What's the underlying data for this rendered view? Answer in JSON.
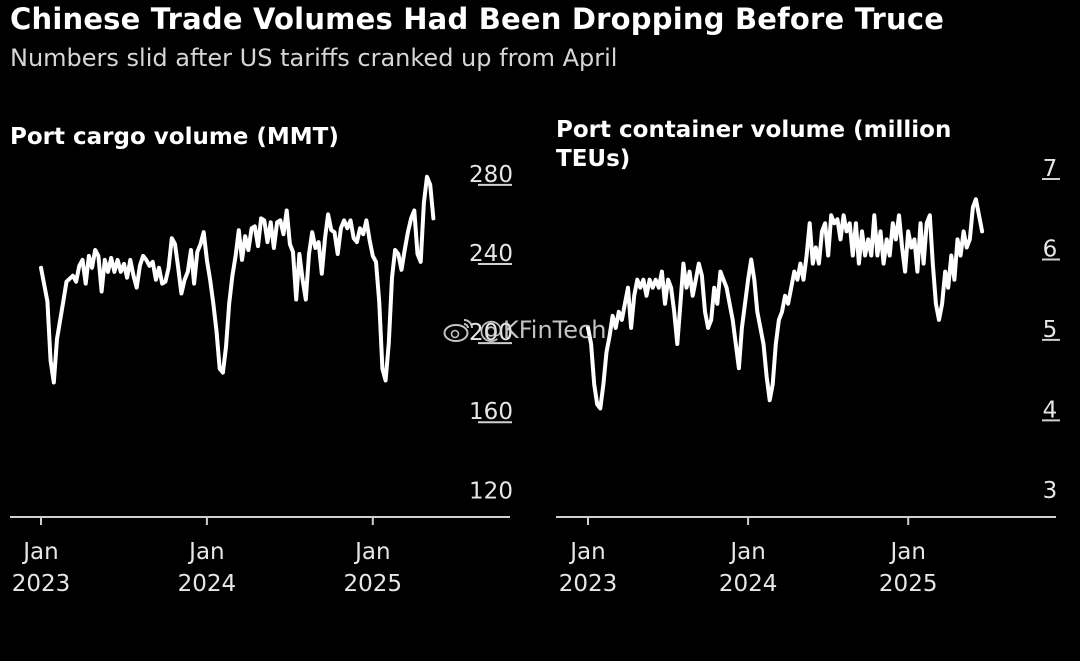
{
  "header": {
    "title": "Chinese Trade Volumes Had Been Dropping Before Truce",
    "subtitle": "Numbers slid after US tariffs cranked up from April"
  },
  "watermark": {
    "text": "@KFinTech",
    "icon": "weibo-icon"
  },
  "colors": {
    "background": "#000000",
    "line": "#ffffff",
    "axis": "#cccccc",
    "text": "#ffffff"
  },
  "chart_data": [
    {
      "type": "line",
      "title": "Port cargo volume (MMT)",
      "xlabel": "",
      "ylabel": "",
      "ylim": [
        106,
        285
      ],
      "yticks": [
        120,
        160,
        200,
        240,
        280
      ],
      "xlim": [
        0,
        147
      ],
      "xticks": [
        {
          "x": 0,
          "label": [
            "Jan",
            "2023"
          ]
        },
        {
          "x": 52,
          "label": [
            "Jan",
            "2024"
          ]
        },
        {
          "x": 104,
          "label": [
            "Jan",
            "2025"
          ]
        }
      ],
      "series": [
        {
          "name": "Port cargo volume",
          "x_unit": "weeks since Jan 2023",
          "values": [
            [
              0,
              232
            ],
            [
              2,
              215
            ],
            [
              3,
              185
            ],
            [
              4,
              174
            ],
            [
              5,
              196
            ],
            [
              7,
              215
            ],
            [
              8,
              225
            ],
            [
              10,
              228
            ],
            [
              11,
              225
            ],
            [
              12,
              233
            ],
            [
              13,
              236
            ],
            [
              14,
              224
            ],
            [
              15,
              238
            ],
            [
              16,
              232
            ],
            [
              17,
              241
            ],
            [
              18,
              238
            ],
            [
              19,
              220
            ],
            [
              20,
              236
            ],
            [
              21,
              230
            ],
            [
              22,
              237
            ],
            [
              23,
              230
            ],
            [
              24,
              236
            ],
            [
              25,
              230
            ],
            [
              26,
              234
            ],
            [
              27,
              227
            ],
            [
              28,
              236
            ],
            [
              29,
              228
            ],
            [
              30,
              222
            ],
            [
              31,
              233
            ],
            [
              32,
              238
            ],
            [
              33,
              236
            ],
            [
              34,
              233
            ],
            [
              35,
              235
            ],
            [
              36,
              226
            ],
            [
              37,
              232
            ],
            [
              38,
              224
            ],
            [
              39,
              225
            ],
            [
              40,
              232
            ],
            [
              41,
              247
            ],
            [
              42,
              244
            ],
            [
              43,
              232
            ],
            [
              44,
              219
            ],
            [
              45,
              226
            ],
            [
              46,
              230
            ],
            [
              47,
              241
            ],
            [
              48,
              224
            ],
            [
              49,
              240
            ],
            [
              50,
              244
            ],
            [
              51,
              250
            ],
            [
              52,
              236
            ],
            [
              53,
              226
            ],
            [
              54,
              214
            ],
            [
              55,
              200
            ],
            [
              56,
              181
            ],
            [
              57,
              179
            ],
            [
              58,
              192
            ],
            [
              59,
              214
            ],
            [
              60,
              228
            ],
            [
              61,
              238
            ],
            [
              62,
              251
            ],
            [
              63,
              236
            ],
            [
              64,
              248
            ],
            [
              65,
              241
            ],
            [
              66,
              252
            ],
            [
              67,
              253
            ],
            [
              68,
              243
            ],
            [
              69,
              257
            ],
            [
              70,
              256
            ],
            [
              71,
              245
            ],
            [
              72,
              255
            ],
            [
              73,
              242
            ],
            [
              74,
              255
            ],
            [
              75,
              256
            ],
            [
              76,
              249
            ],
            [
              77,
              261
            ],
            [
              78,
              244
            ],
            [
              79,
              240
            ],
            [
              80,
              216
            ],
            [
              81,
              239
            ],
            [
              82,
              226
            ],
            [
              83,
              216
            ],
            [
              84,
              239
            ],
            [
              85,
              250
            ],
            [
              86,
              242
            ],
            [
              87,
              245
            ],
            [
              88,
              229
            ],
            [
              89,
              247
            ],
            [
              90,
              259
            ],
            [
              91,
              251
            ],
            [
              92,
              250
            ],
            [
              93,
              239
            ],
            [
              94,
              252
            ],
            [
              95,
              256
            ],
            [
              96,
              252
            ],
            [
              97,
              256
            ],
            [
              98,
              247
            ],
            [
              99,
              245
            ],
            [
              100,
              252
            ],
            [
              101,
              249
            ],
            [
              102,
              256
            ],
            [
              103,
              246
            ],
            [
              104,
              238
            ],
            [
              105,
              235
            ],
            [
              106,
              215
            ],
            [
              107,
              181
            ],
            [
              108,
              175
            ],
            [
              109,
              194
            ],
            [
              110,
              227
            ],
            [
              111,
              241
            ],
            [
              112,
              239
            ],
            [
              113,
              231
            ],
            [
              114,
              241
            ],
            [
              115,
              250
            ],
            [
              116,
              257
            ],
            [
              117,
              261
            ],
            [
              118,
              239
            ],
            [
              119,
              235
            ],
            [
              120,
              265
            ],
            [
              121,
              278
            ],
            [
              122,
              274
            ],
            [
              123,
              257
            ]
          ]
        }
      ]
    },
    {
      "type": "line",
      "title": "Port container volume (million TEUs)",
      "xlabel": "",
      "ylabel": "",
      "ylim": [
        2.65,
        7.05
      ],
      "yticks": [
        3,
        4,
        5,
        6,
        7
      ],
      "xlim": [
        0,
        152
      ],
      "xticks": [
        {
          "x": 0,
          "label": [
            "Jan",
            "2023"
          ]
        },
        {
          "x": 52,
          "label": [
            "Jan",
            "2024"
          ]
        },
        {
          "x": 104,
          "label": [
            "Jan",
            "2025"
          ]
        }
      ],
      "series": [
        {
          "name": "Port container volume",
          "x_unit": "weeks since Jan 2023",
          "values": [
            [
              0,
              5.0
            ],
            [
              1,
              4.8
            ],
            [
              2,
              4.3
            ],
            [
              3,
              4.05
            ],
            [
              4,
              4.0
            ],
            [
              5,
              4.3
            ],
            [
              6,
              4.7
            ],
            [
              7,
              4.9
            ],
            [
              8,
              5.15
            ],
            [
              9,
              5.0
            ],
            [
              10,
              5.2
            ],
            [
              11,
              5.1
            ],
            [
              12,
              5.3
            ],
            [
              13,
              5.5
            ],
            [
              14,
              5.0
            ],
            [
              15,
              5.4
            ],
            [
              16,
              5.6
            ],
            [
              17,
              5.5
            ],
            [
              18,
              5.6
            ],
            [
              19,
              5.4
            ],
            [
              20,
              5.6
            ],
            [
              21,
              5.5
            ],
            [
              22,
              5.6
            ],
            [
              23,
              5.5
            ],
            [
              24,
              5.7
            ],
            [
              25,
              5.3
            ],
            [
              26,
              5.6
            ],
            [
              27,
              5.5
            ],
            [
              28,
              5.2
            ],
            [
              29,
              4.8
            ],
            [
              30,
              5.3
            ],
            [
              31,
              5.8
            ],
            [
              32,
              5.5
            ],
            [
              33,
              5.7
            ],
            [
              34,
              5.4
            ],
            [
              35,
              5.6
            ],
            [
              36,
              5.8
            ],
            [
              37,
              5.65
            ],
            [
              38,
              5.2
            ],
            [
              39,
              5.0
            ],
            [
              40,
              5.1
            ],
            [
              41,
              5.5
            ],
            [
              42,
              5.3
            ],
            [
              43,
              5.7
            ],
            [
              44,
              5.6
            ],
            [
              45,
              5.5
            ],
            [
              46,
              5.3
            ],
            [
              47,
              5.1
            ],
            [
              48,
              4.8
            ],
            [
              49,
              4.5
            ],
            [
              50,
              5.0
            ],
            [
              51,
              5.3
            ],
            [
              52,
              5.6
            ],
            [
              53,
              5.85
            ],
            [
              54,
              5.6
            ],
            [
              55,
              5.2
            ],
            [
              56,
              5.0
            ],
            [
              57,
              4.8
            ],
            [
              58,
              4.4
            ],
            [
              59,
              4.1
            ],
            [
              60,
              4.3
            ],
            [
              61,
              4.8
            ],
            [
              62,
              5.1
            ],
            [
              63,
              5.2
            ],
            [
              64,
              5.4
            ],
            [
              65,
              5.3
            ],
            [
              66,
              5.5
            ],
            [
              67,
              5.7
            ],
            [
              68,
              5.6
            ],
            [
              69,
              5.8
            ],
            [
              70,
              5.6
            ],
            [
              71,
              5.9
            ],
            [
              72,
              6.3
            ],
            [
              73,
              5.8
            ],
            [
              74,
              6.0
            ],
            [
              75,
              5.8
            ],
            [
              76,
              6.2
            ],
            [
              77,
              6.3
            ],
            [
              78,
              5.9
            ],
            [
              79,
              6.4
            ],
            [
              80,
              6.3
            ],
            [
              81,
              6.35
            ],
            [
              82,
              6.1
            ],
            [
              83,
              6.4
            ],
            [
              84,
              6.2
            ],
            [
              85,
              6.3
            ],
            [
              86,
              5.9
            ],
            [
              87,
              6.3
            ],
            [
              88,
              5.8
            ],
            [
              89,
              6.2
            ],
            [
              90,
              5.9
            ],
            [
              91,
              6.1
            ],
            [
              92,
              5.9
            ],
            [
              93,
              6.4
            ],
            [
              94,
              5.9
            ],
            [
              95,
              6.2
            ],
            [
              96,
              5.8
            ],
            [
              97,
              6.1
            ],
            [
              98,
              5.9
            ],
            [
              99,
              6.3
            ],
            [
              100,
              6.1
            ],
            [
              101,
              6.4
            ],
            [
              102,
              6.0
            ],
            [
              103,
              5.7
            ],
            [
              104,
              6.2
            ],
            [
              105,
              6.0
            ],
            [
              106,
              6.1
            ],
            [
              107,
              5.7
            ],
            [
              108,
              6.3
            ],
            [
              109,
              5.8
            ],
            [
              110,
              6.3
            ],
            [
              111,
              6.4
            ],
            [
              112,
              5.8
            ],
            [
              113,
              5.3
            ],
            [
              114,
              5.1
            ],
            [
              115,
              5.3
            ],
            [
              116,
              5.7
            ],
            [
              117,
              5.5
            ],
            [
              118,
              5.9
            ],
            [
              119,
              5.6
            ],
            [
              120,
              6.1
            ],
            [
              121,
              5.9
            ],
            [
              122,
              6.2
            ],
            [
              123,
              6.0
            ],
            [
              124,
              6.1
            ],
            [
              125,
              6.5
            ],
            [
              126,
              6.6
            ],
            [
              127,
              6.4
            ],
            [
              128,
              6.2
            ]
          ]
        }
      ]
    }
  ]
}
